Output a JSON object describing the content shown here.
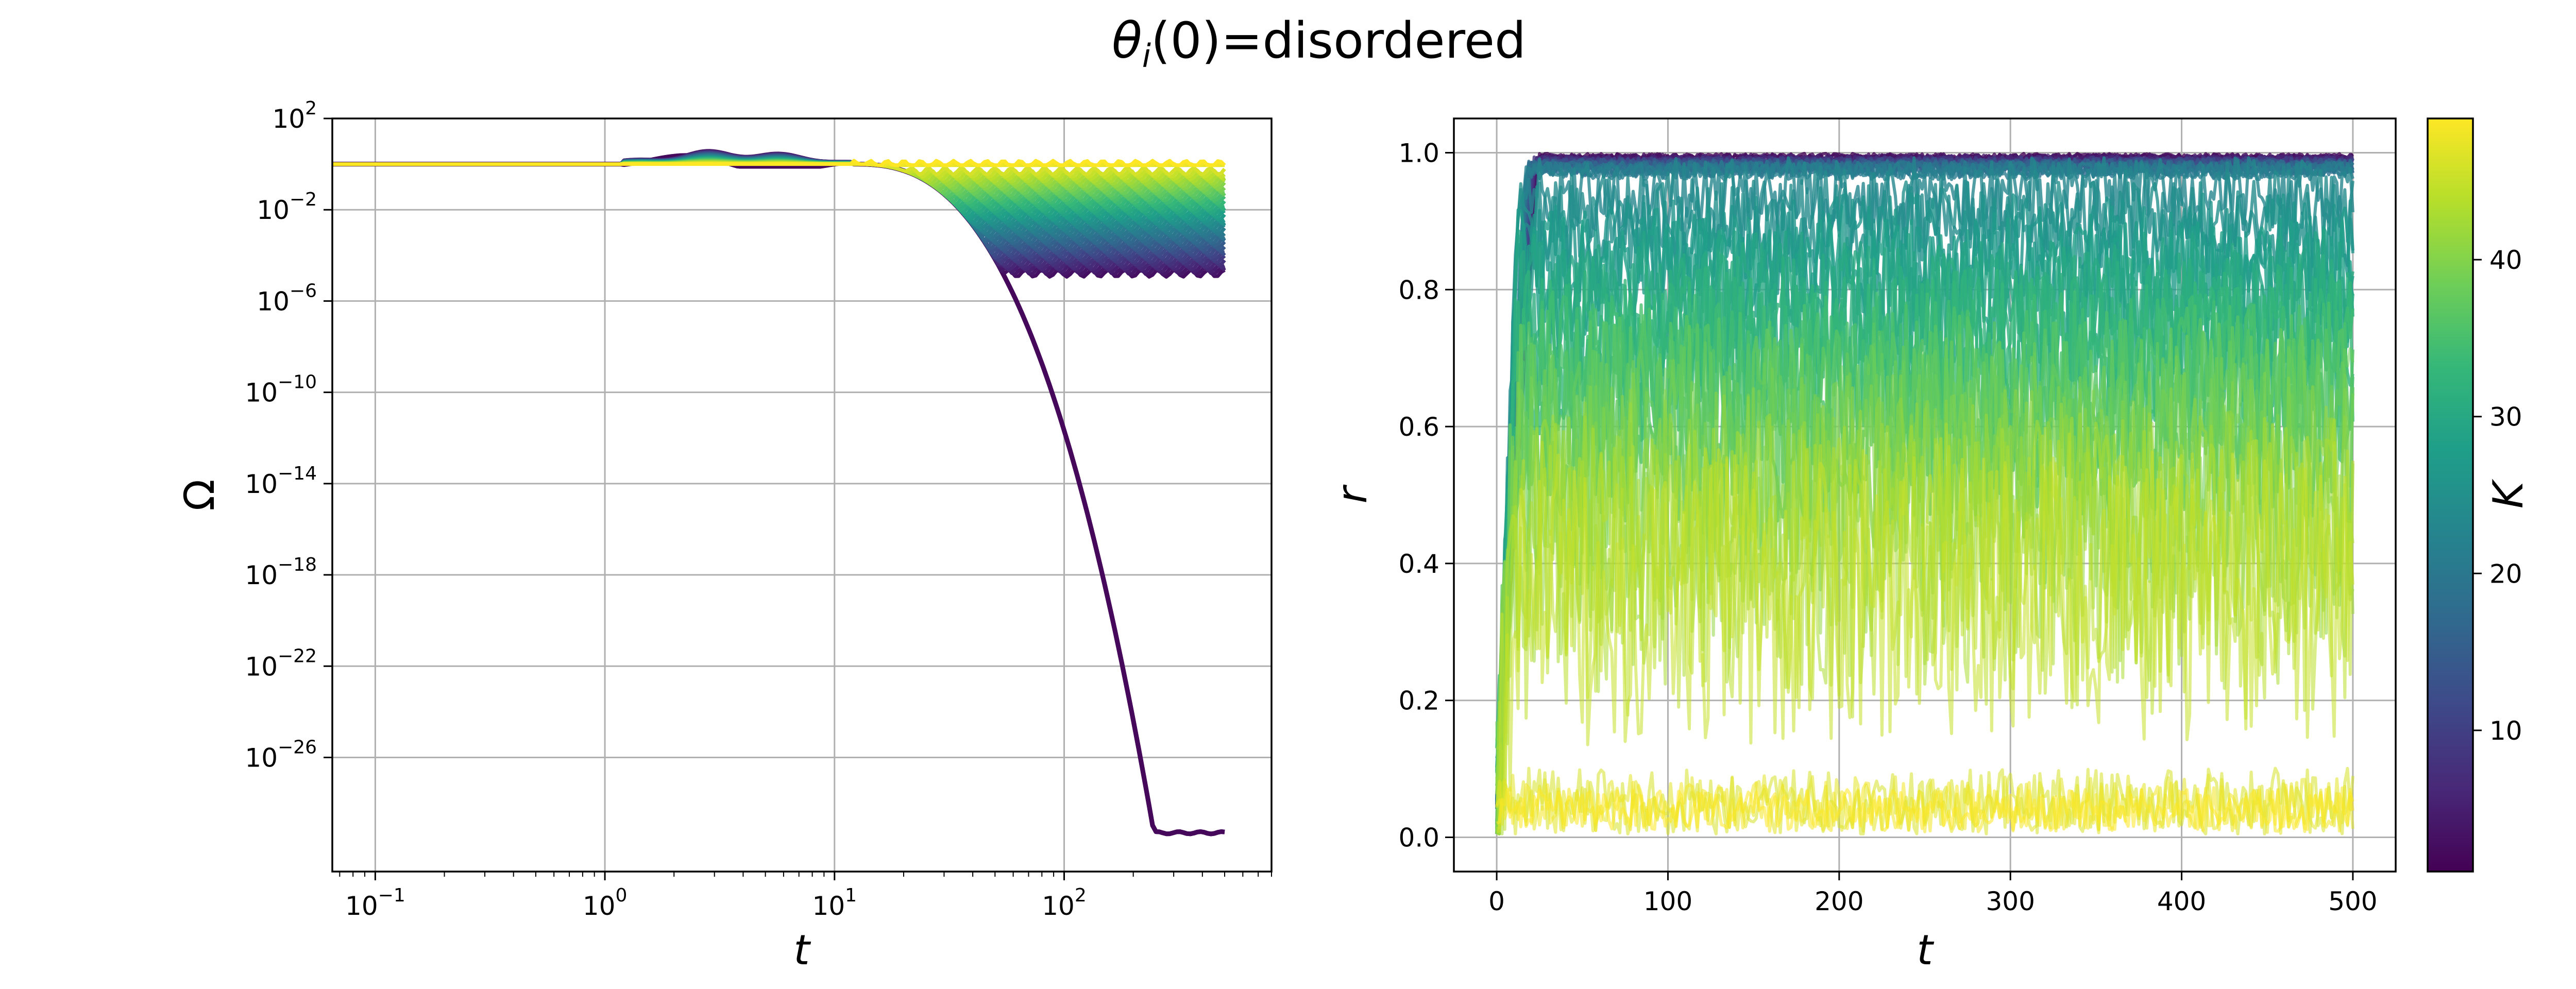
{
  "title": {
    "main": "θ",
    "sub": "i",
    "rest": "(0)=disordered"
  },
  "chart_data": [
    {
      "type": "line",
      "panel": "left",
      "xlabel": "t",
      "ylabel": "Ω",
      "xscale": "log",
      "yscale": "log",
      "xlim": [
        0.065,
        800
      ],
      "ylim": [
        1e-31,
        100
      ],
      "xticks": [
        {
          "base": "10",
          "exp": "−1"
        },
        {
          "base": "10",
          "exp": "0"
        },
        {
          "base": "10",
          "exp": "1"
        },
        {
          "base": "10",
          "exp": "2"
        }
      ],
      "yticks": [
        {
          "base": "10",
          "exp": "2"
        },
        {
          "base": "10",
          "exp": "−2"
        },
        {
          "base": "10",
          "exp": "−6"
        },
        {
          "base": "10",
          "exp": "−10"
        },
        {
          "base": "10",
          "exp": "−14"
        },
        {
          "base": "10",
          "exp": "−18"
        },
        {
          "base": "10",
          "exp": "−22"
        },
        {
          "base": "10",
          "exp": "−26"
        }
      ],
      "grid": true,
      "series_colored_by": "K",
      "k_range": [
        1,
        49
      ],
      "n_curves": 49,
      "description_of_curves": {
        "plateau_value": 1,
        "low_k_decay_floor": 5e-30,
        "high_k_final_range": [
          1e-05,
          1
        ]
      }
    },
    {
      "type": "line",
      "panel": "right",
      "xlabel": "t",
      "ylabel": "r",
      "xlim": [
        -25,
        525
      ],
      "ylim": [
        -0.05,
        1.05
      ],
      "xticks": [
        "0",
        "100",
        "200",
        "300",
        "400",
        "500"
      ],
      "yticks": [
        "0.0",
        "0.2",
        "0.4",
        "0.6",
        "0.8",
        "1.0"
      ],
      "grid": true,
      "series_colored_by": "K",
      "k_range": [
        1,
        49
      ],
      "n_curves": 49
    }
  ],
  "colorbar": {
    "label": "K",
    "ticks": [
      "10",
      "20",
      "30",
      "40"
    ],
    "range": [
      1,
      49
    ],
    "colormap": "viridis",
    "colors": [
      "#440154",
      "#482878",
      "#3e4989",
      "#31688e",
      "#26828e",
      "#1f9e89",
      "#35b779",
      "#6ece58",
      "#b5de2b",
      "#fde725"
    ]
  }
}
